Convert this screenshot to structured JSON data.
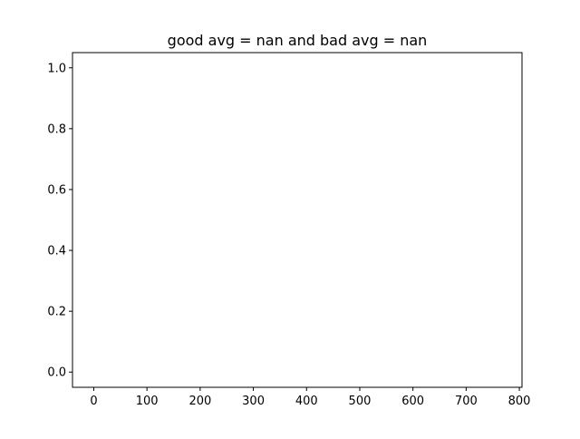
{
  "chart_data": {
    "type": "line",
    "title": "good avg = nan and bad avg = nan",
    "xlabel": "",
    "ylabel": "",
    "xlim": [
      -40,
      805
    ],
    "ylim": [
      -0.05,
      1.05
    ],
    "x_ticks": [
      0,
      100,
      200,
      300,
      400,
      500,
      600,
      700,
      800
    ],
    "y_ticks": [
      0.0,
      0.2,
      0.4,
      0.6,
      0.8,
      1.0
    ],
    "x_tick_labels": [
      "0",
      "100",
      "200",
      "300",
      "400",
      "500",
      "600",
      "700",
      "800"
    ],
    "y_tick_labels": [
      "0.0",
      "0.2",
      "0.4",
      "0.6",
      "0.8",
      "1.0"
    ],
    "series": [],
    "grid": false,
    "legend": "none",
    "colors": {
      "background": "#ffffff",
      "axes": "#000000",
      "text": "#000000"
    }
  }
}
